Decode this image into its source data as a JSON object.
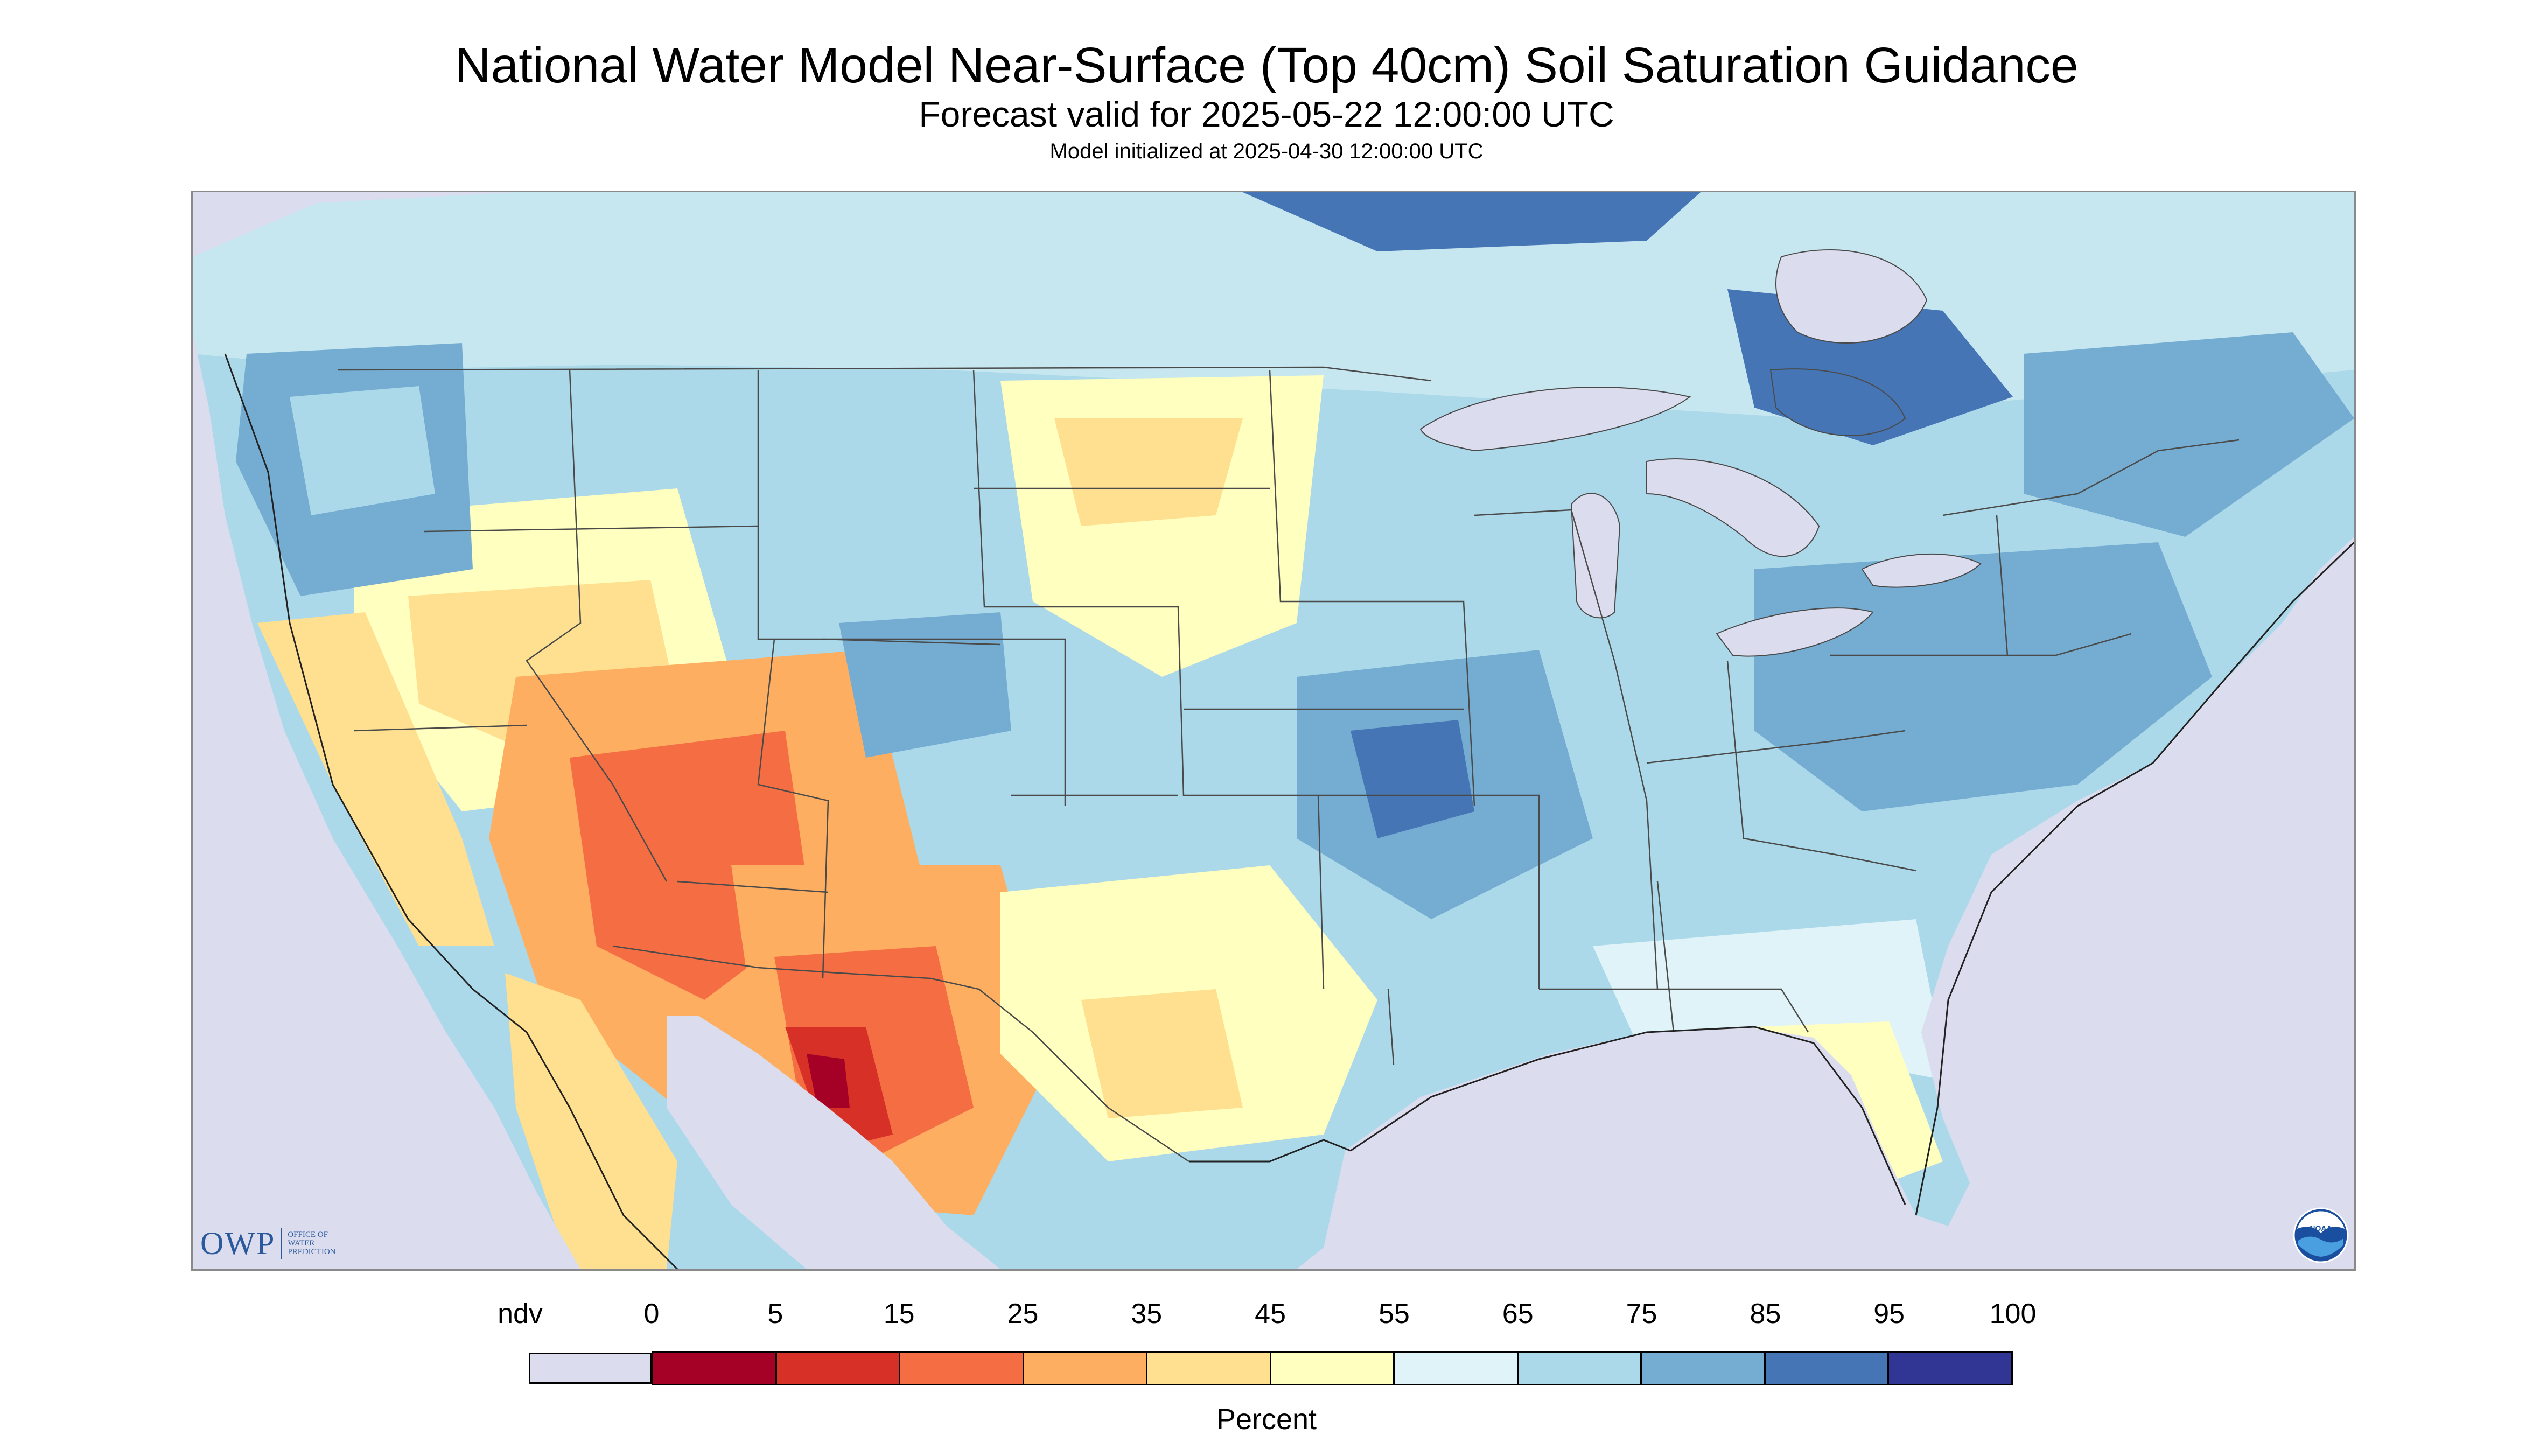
{
  "header": {
    "title": "National Water Model Near-Surface (Top 40cm) Soil Saturation Guidance",
    "subtitle": "Forecast valid for 2025-05-22 12:00:00 UTC",
    "initialized": "Model initialized at 2025-04-30 12:00:00 UTC"
  },
  "logos": {
    "owp_mark": "OWP",
    "owp_line1": "OFFICE OF",
    "owp_line2": "WATER",
    "owp_line3": "PREDICTION",
    "noaa_text": "NOAA"
  },
  "legend": {
    "label": "Percent",
    "ticks": [
      "ndv",
      "0",
      "5",
      "15",
      "25",
      "35",
      "45",
      "55",
      "65",
      "75",
      "85",
      "95",
      "100"
    ],
    "bins": [
      {
        "range": "ndv",
        "color": "#dcdcef"
      },
      {
        "range": "0-5",
        "color": "#a50026"
      },
      {
        "range": "5-15",
        "color": "#d73027"
      },
      {
        "range": "15-25",
        "color": "#f46d43"
      },
      {
        "range": "25-35",
        "color": "#fdae61"
      },
      {
        "range": "35-45",
        "color": "#fee090"
      },
      {
        "range": "45-55",
        "color": "#ffffbf"
      },
      {
        "range": "55-65",
        "color": "#e0f3f8"
      },
      {
        "range": "65-75",
        "color": "#abd9e9"
      },
      {
        "range": "75-85",
        "color": "#74add1"
      },
      {
        "range": "85-95",
        "color": "#4575b4"
      },
      {
        "range": "95-100",
        "color": "#313695"
      }
    ]
  },
  "map": {
    "type": "soil saturation choropleth",
    "region": "Continental United States with southern Canada and northern Mexico",
    "colors": {
      "no_data": "#dcdcef",
      "background_land": "#abd9e9",
      "border": "#4a4a4a"
    }
  }
}
